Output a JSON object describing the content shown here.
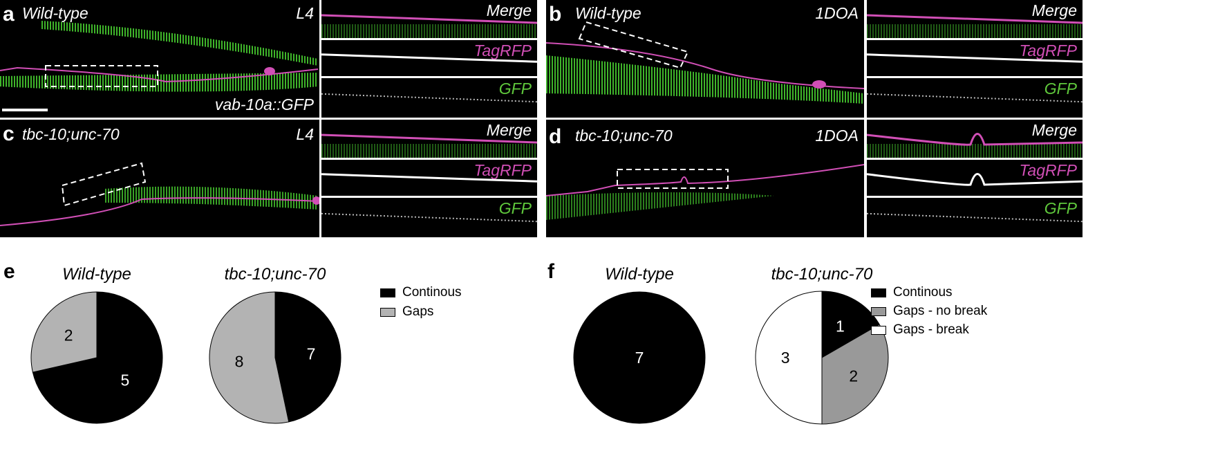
{
  "panels": {
    "a": {
      "letter": "a",
      "title": "Wild-type",
      "stage": "L4",
      "marker": "vab-10a::GFP"
    },
    "b": {
      "letter": "b",
      "title": "Wild-type",
      "stage": "1DOA"
    },
    "c": {
      "letter": "c",
      "title": "tbc-10;unc-70",
      "stage": "L4"
    },
    "d": {
      "letter": "d",
      "title": "tbc-10;unc-70",
      "stage": "1DOA"
    }
  },
  "inset_labels": {
    "merge": "Merge",
    "tagrfp": "TagRFP",
    "gfp": "GFP"
  },
  "colors": {
    "green": "#5fc83c",
    "magenta": "#d14fb6",
    "continuous": "#000000",
    "gaps": "#b3b3b3",
    "gaps_no_break": "#999999",
    "gaps_break": "#ffffff"
  },
  "chart_data": [
    {
      "type": "pie",
      "panel": "e",
      "title": "Wild-type",
      "labels": [
        "Continous",
        "Gaps"
      ],
      "values": [
        5,
        2
      ]
    },
    {
      "type": "pie",
      "panel": "e",
      "title": "tbc-10;unc-70",
      "labels": [
        "Continous",
        "Gaps"
      ],
      "values": [
        7,
        8
      ]
    },
    {
      "type": "pie",
      "panel": "f",
      "title": "Wild-type",
      "labels": [
        "Continous",
        "Gaps - no break",
        "Gaps - break"
      ],
      "values": [
        7,
        0,
        0
      ]
    },
    {
      "type": "pie",
      "panel": "f",
      "title": "tbc-10;unc-70",
      "labels": [
        "Continous",
        "Gaps - no break",
        "Gaps - break"
      ],
      "values": [
        1,
        2,
        3
      ]
    }
  ],
  "legend_e": [
    "Continous",
    "Gaps"
  ],
  "legend_f": [
    "Continous",
    "Gaps - no break",
    "Gaps - break"
  ],
  "letters": {
    "e": "e",
    "f": "f"
  }
}
